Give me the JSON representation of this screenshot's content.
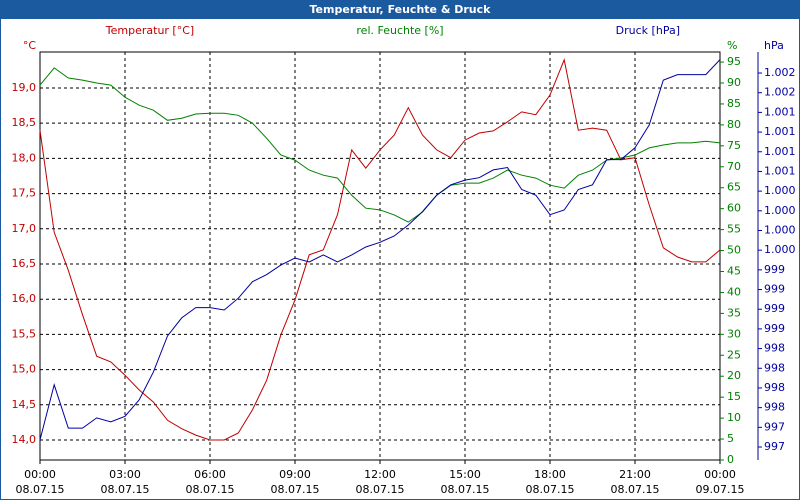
{
  "chart_data": {
    "type": "line",
    "title": "Temperatur, Feuchte & Druck",
    "x": [
      0,
      0.5,
      1,
      1.5,
      2,
      2.5,
      3,
      3.5,
      4,
      4.5,
      5,
      5.5,
      6,
      6.5,
      7,
      7.5,
      8,
      8.5,
      9,
      9.5,
      10,
      10.5,
      11,
      11.5,
      12,
      12.5,
      13,
      13.5,
      14,
      14.5,
      15,
      15.5,
      16,
      16.5,
      17,
      17.5,
      18,
      18.5,
      19,
      19.5,
      20,
      20.5,
      21,
      21.5,
      22,
      22.5,
      23,
      23.5,
      24
    ],
    "xlim": [
      0,
      24
    ],
    "xticks": [
      {
        "value": 0,
        "label": "00:00"
      },
      {
        "value": 3,
        "label": "03:00"
      },
      {
        "value": 6,
        "label": "06:00"
      },
      {
        "value": 9,
        "label": "09:00"
      },
      {
        "value": 12,
        "label": "12:00"
      },
      {
        "value": 15,
        "label": "15:00"
      },
      {
        "value": 18,
        "label": "18:00"
      },
      {
        "value": 21,
        "label": "21:00"
      },
      {
        "value": 24,
        "label": "00:00"
      }
    ],
    "xtick_dates": [
      "08.07.15",
      "08.07.15",
      "08.07.15",
      "08.07.15",
      "08.07.15",
      "08.07.15",
      "08.07.15",
      "08.07.15",
      "09.07.15"
    ],
    "ylim": [
      13.716,
      19.511
    ],
    "yticks": [
      {
        "value": 14,
        "label": "14,0"
      },
      {
        "value": 14.5,
        "label": "14,5"
      },
      {
        "value": 15,
        "label": "15,0"
      },
      {
        "value": 15.5,
        "label": "15,5"
      },
      {
        "value": 16,
        "label": "16,0"
      },
      {
        "value": 16.5,
        "label": "16,5"
      },
      {
        "value": 17,
        "label": "17,0"
      },
      {
        "value": 17.5,
        "label": "17,5"
      },
      {
        "value": 18,
        "label": "18,0"
      },
      {
        "value": 18.5,
        "label": "18,5"
      },
      {
        "value": 19,
        "label": "19,0"
      }
    ],
    "y_unit": "°C",
    "y2lim": [
      0,
      97.4
    ],
    "y2ticks": [
      0,
      5,
      10,
      15,
      20,
      25,
      30,
      35,
      40,
      45,
      50,
      55,
      60,
      65,
      70,
      75,
      80,
      85,
      90,
      95
    ],
    "y2_unit": "%",
    "y3lim": [
      996.835,
      1002.017
    ],
    "y3ticks": [
      {
        "value": 997,
        "label": "997"
      },
      {
        "value": 997.25,
        "label": "997"
      },
      {
        "value": 997.5,
        "label": "998"
      },
      {
        "value": 997.75,
        "label": "998"
      },
      {
        "value": 998,
        "label": "998"
      },
      {
        "value": 998.25,
        "label": "998"
      },
      {
        "value": 998.5,
        "label": "999"
      },
      {
        "value": 998.75,
        "label": "999"
      },
      {
        "value": 999,
        "label": "999"
      },
      {
        "value": 999.25,
        "label": "999"
      },
      {
        "value": 999.5,
        "label": "1.000"
      },
      {
        "value": 999.75,
        "label": "1.000"
      },
      {
        "value": 1000,
        "label": "1.000"
      },
      {
        "value": 1000.25,
        "label": "1.000"
      },
      {
        "value": 1000.5,
        "label": "1.001"
      },
      {
        "value": 1000.75,
        "label": "1.001"
      },
      {
        "value": 1001,
        "label": "1.001"
      },
      {
        "value": 1001.25,
        "label": "1.001"
      },
      {
        "value": 1001.5,
        "label": "1.002"
      },
      {
        "value": 1001.75,
        "label": "1.002"
      }
    ],
    "y3_unit": "hPa",
    "grid": true,
    "series": [
      {
        "name": "Temperatur [°C]",
        "color": "#c00000",
        "axis": "y",
        "values": [
          18.4,
          16.95,
          16.41,
          15.78,
          15.19,
          15.11,
          14.92,
          14.71,
          14.54,
          14.28,
          14.16,
          14.07,
          14.0,
          14.0,
          14.1,
          14.43,
          14.85,
          15.49,
          15.99,
          16.63,
          16.7,
          17.2,
          18.12,
          17.86,
          18.12,
          18.33,
          18.72,
          18.33,
          18.12,
          18.01,
          18.26,
          18.36,
          18.39,
          18.52,
          18.66,
          18.62,
          18.9,
          19.4,
          18.4,
          18.43,
          18.4,
          17.98,
          18.01,
          17.34,
          16.73,
          16.6,
          16.53,
          16.53,
          16.7
        ]
      },
      {
        "name": "rel. Feuchte [%]",
        "color": "#008000",
        "axis": "y2",
        "values": [
          89.5,
          93.6,
          91.2,
          90.7,
          90.0,
          89.5,
          86.6,
          84.7,
          83.5,
          81.1,
          81.6,
          82.6,
          82.8,
          82.8,
          82.3,
          80.4,
          76.8,
          72.8,
          71.6,
          69.2,
          68.0,
          67.3,
          63.2,
          60.1,
          59.7,
          58.5,
          56.8,
          59.2,
          63.2,
          65.6,
          66.1,
          66.1,
          67.3,
          69.2,
          68.0,
          67.3,
          65.6,
          64.9,
          68.0,
          69.2,
          71.6,
          72.1,
          72.8,
          74.5,
          75.2,
          75.7,
          75.7,
          76.1,
          75.7
        ]
      },
      {
        "name": "Druck [hPa]",
        "color": "#0000a0",
        "axis": "y3",
        "values": [
          997.09,
          997.79,
          997.24,
          997.24,
          997.37,
          997.32,
          997.39,
          997.6,
          997.95,
          998.41,
          998.64,
          998.77,
          998.77,
          998.74,
          998.89,
          999.1,
          999.19,
          999.31,
          999.4,
          999.35,
          999.44,
          999.35,
          999.44,
          999.54,
          999.6,
          999.68,
          999.82,
          999.99,
          1000.2,
          1000.33,
          1000.39,
          1000.42,
          1000.52,
          1000.55,
          1000.27,
          1000.2,
          999.95,
          1000.01,
          1000.27,
          1000.33,
          1000.65,
          1000.65,
          1000.8,
          1001.09,
          1001.66,
          1001.73,
          1001.73,
          1001.73,
          1001.92
        ]
      }
    ]
  }
}
